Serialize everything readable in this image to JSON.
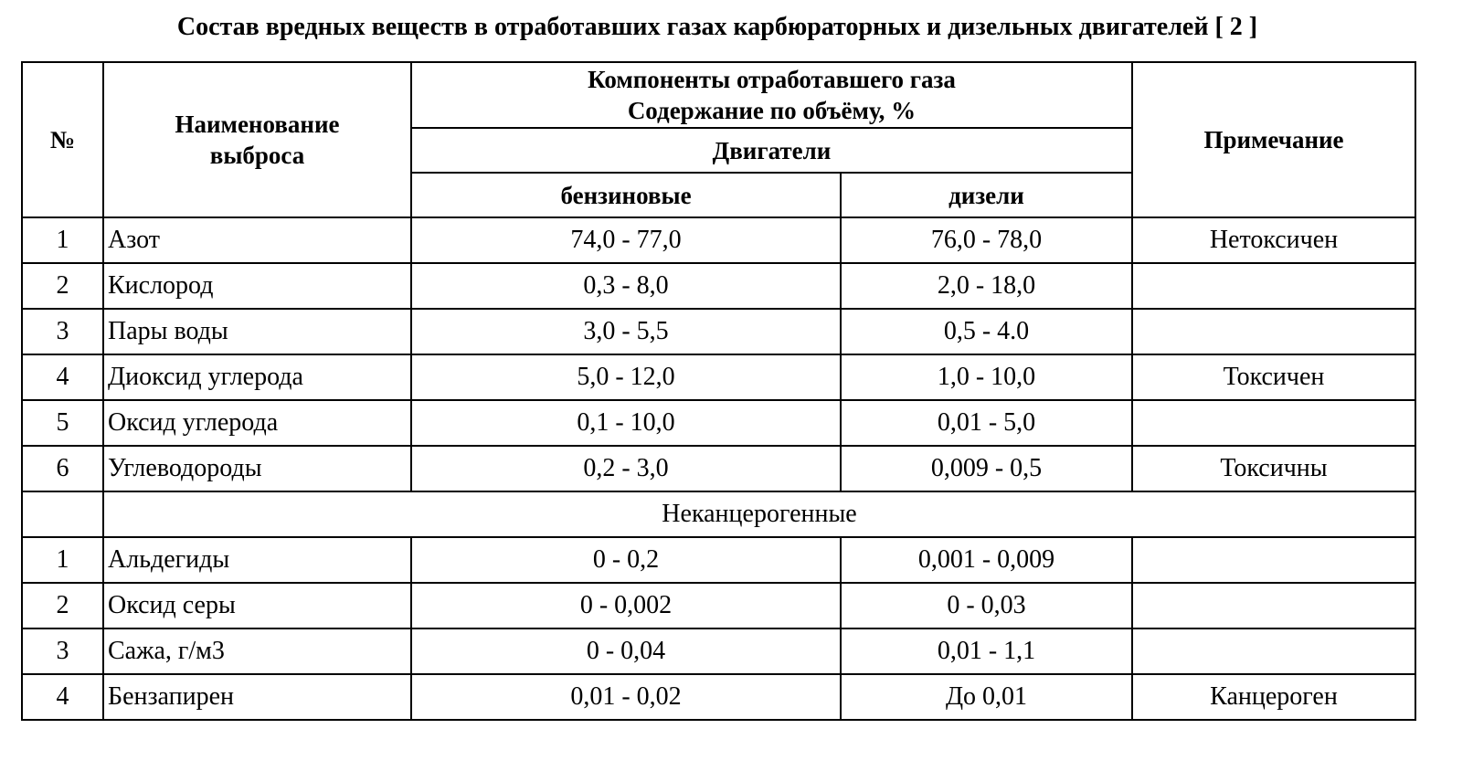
{
  "header": {
    "title": "Состав вредных веществ в отработавших газах карбюраторных и дизельных двигателей [ 2 ]"
  },
  "table": {
    "columns": {
      "num": "№",
      "name": "Наименование выброса",
      "components": "Компоненты отработавшего газа",
      "content": "Содержание по объёму, %",
      "engines": "Двигатели",
      "petrol": "бензиновые",
      "diesel": "дизели",
      "note": "Примечание"
    },
    "rows": [
      {
        "num": "1",
        "name": "Азот",
        "petrol": "74,0 - 77,0",
        "diesel": "76,0 - 78,0",
        "note": "Нетоксичен"
      },
      {
        "num": "2",
        "name": "Кислород",
        "petrol": "0,3 - 8,0",
        "diesel": "2,0 - 18,0"
      },
      {
        "num": "3",
        "name": "Пары воды",
        "petrol": "3,0 - 5,5",
        "diesel": "0,5 - 4.0"
      },
      {
        "num": "4",
        "name": "Диоксид углерода",
        "petrol": "5,0 - 12,0",
        "diesel": "1,0 - 10,0",
        "note": "Токсичен"
      },
      {
        "num": "5",
        "name": "Оксид углерода",
        "petrol": "0,1 - 10,0",
        "diesel": "0,01 - 5,0"
      },
      {
        "num": "6",
        "name": "Углеводороды",
        "petrol": "0,2 - 3,0",
        "diesel": "0,009 - 0,5",
        "note": "Токсичны"
      }
    ],
    "section": "Неканцерогенные",
    "section_rows": [
      {
        "num": "1",
        "name": "Альдегиды",
        "petrol": "0 - 0,2",
        "diesel": "0,001 - 0,009"
      },
      {
        "num": "2",
        "name": "Оксид серы",
        "petrol": "0 - 0,002",
        "diesel": "0 - 0,03"
      },
      {
        "num": "3",
        "name": "Сажа, г/м3",
        "petrol": "0 - 0,04",
        "diesel": "0,01 - 1,1"
      },
      {
        "num": "4",
        "name": "Бензапирен",
        "petrol": "0,01 - 0,02",
        "diesel": "До 0,01",
        "note": "Канцероген"
      }
    ]
  }
}
